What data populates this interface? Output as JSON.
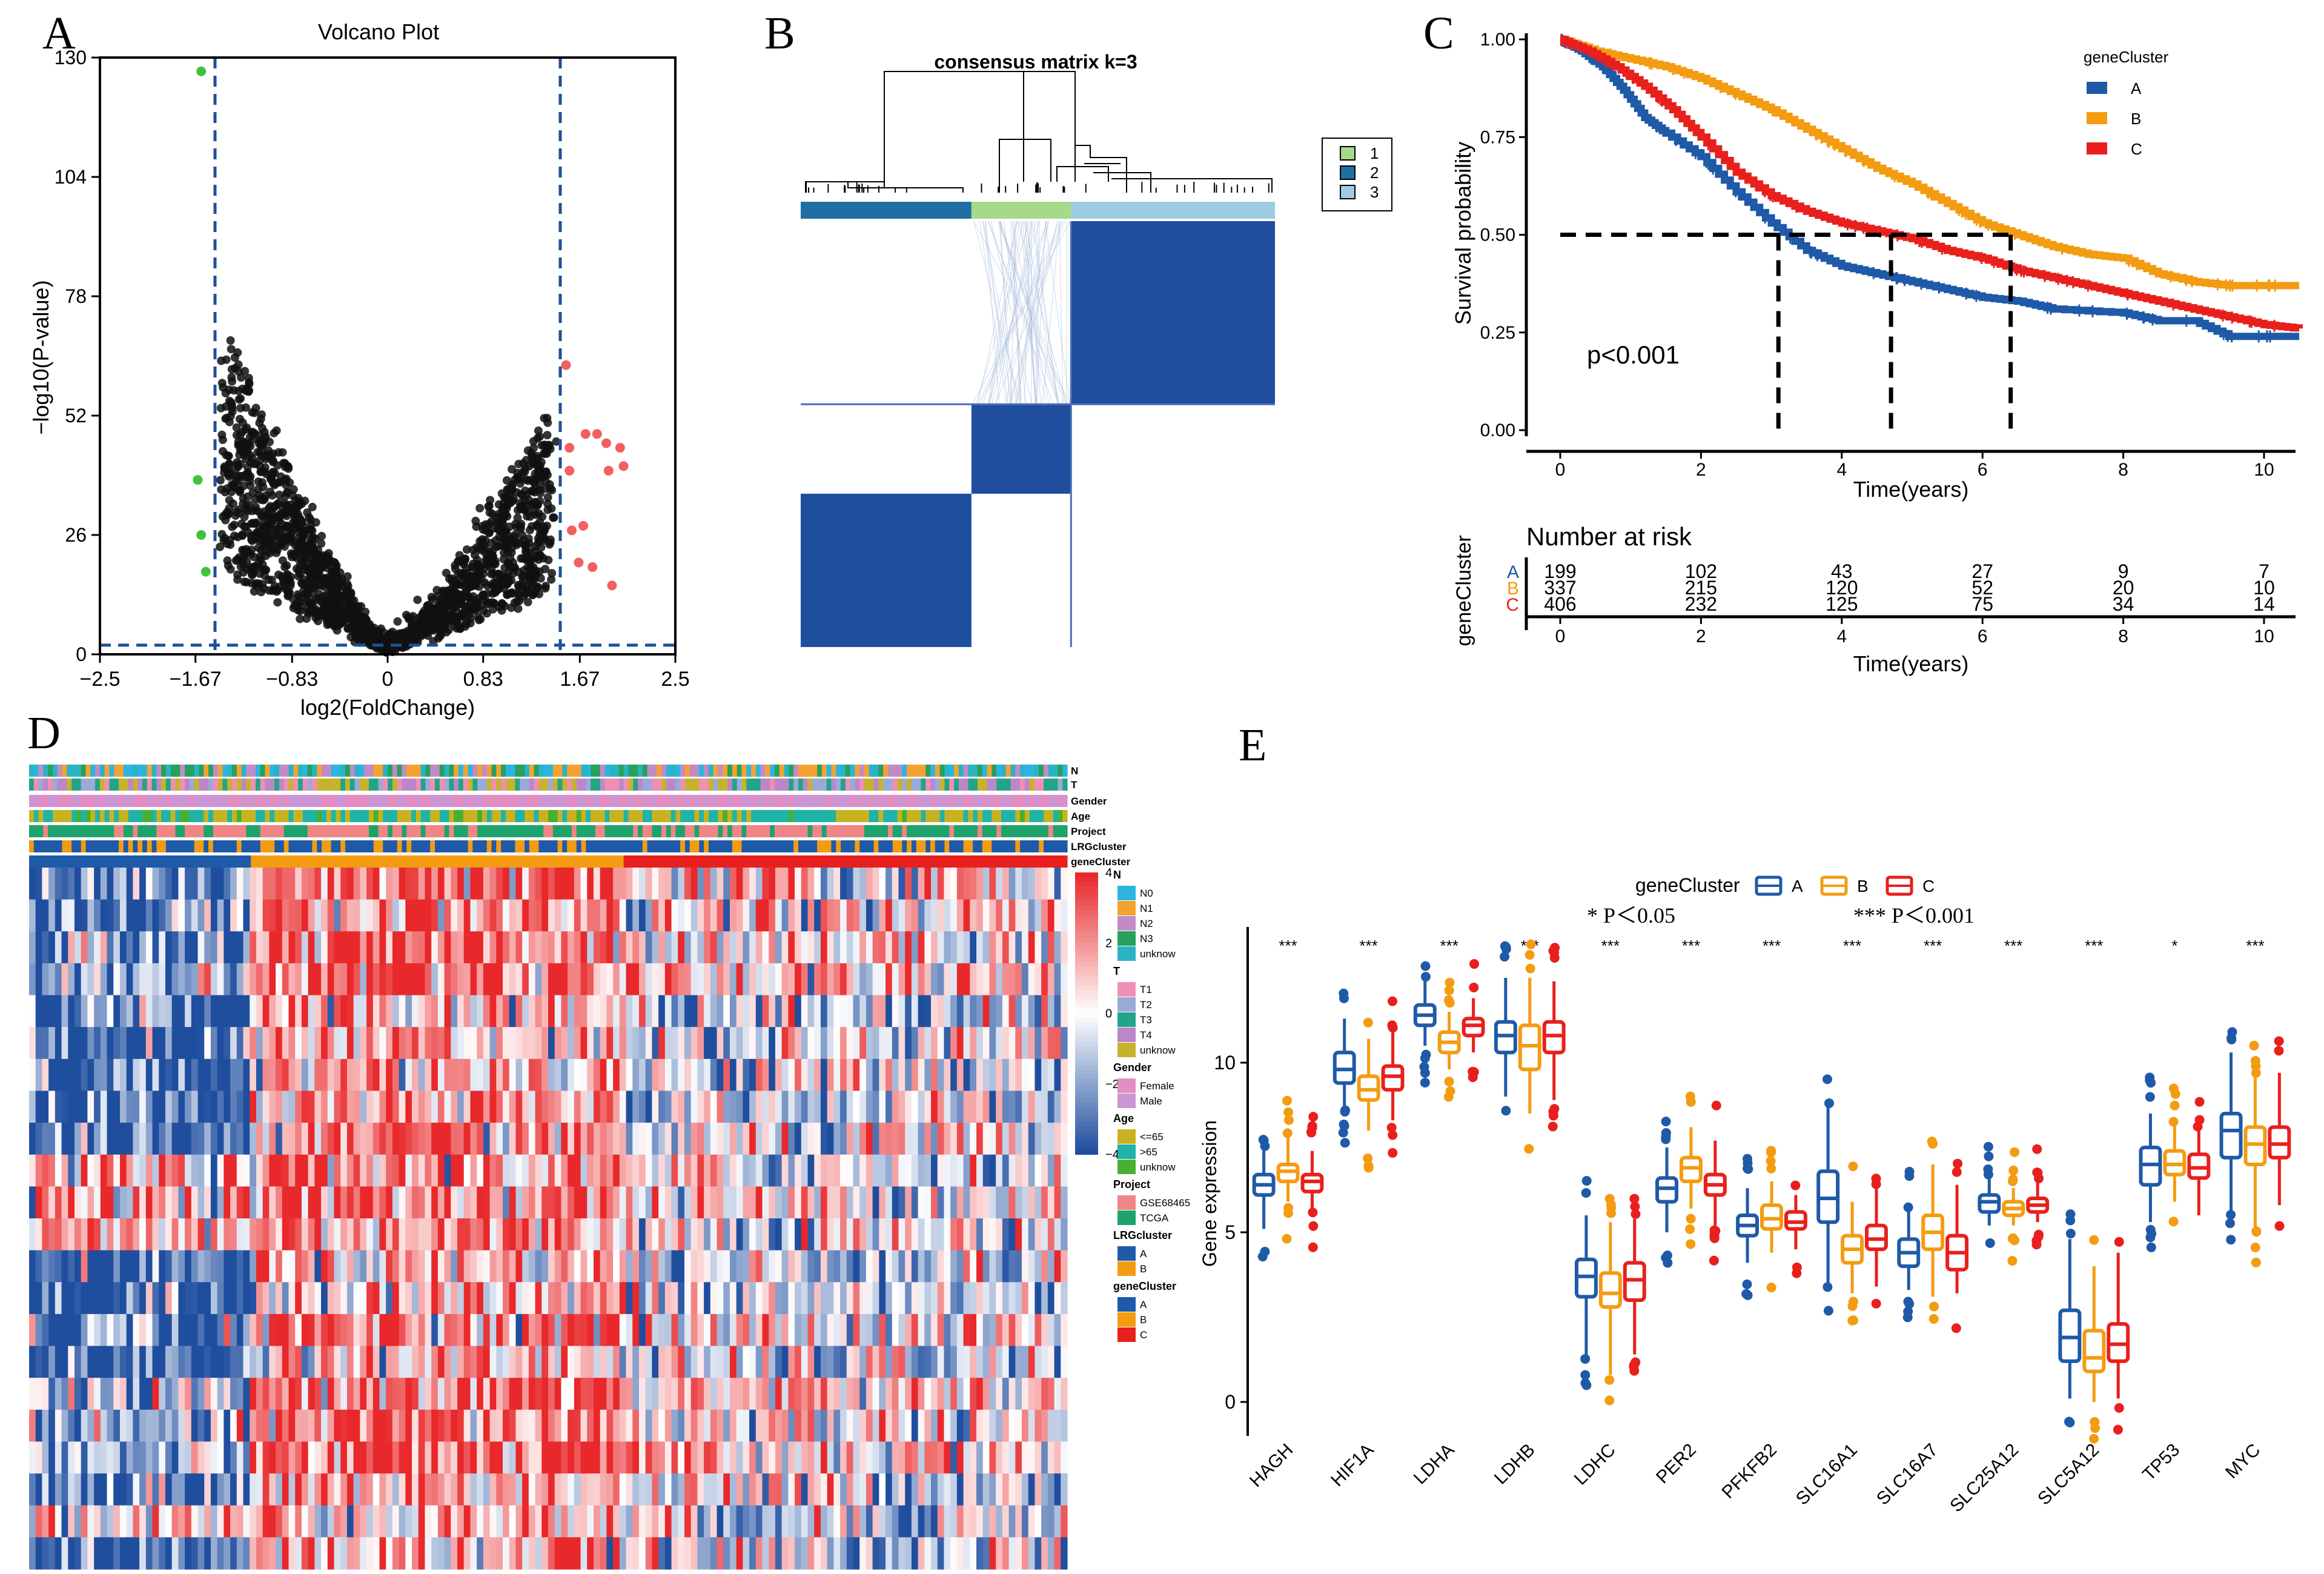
{
  "panels": {
    "A": "A",
    "B": "B",
    "C": "C",
    "D": "D",
    "E": "E"
  },
  "colors": {
    "blue": "#1f5aa8",
    "orange": "#f39c12",
    "red": "#e8201d",
    "heat_low": "#1f4e9f",
    "heat_high": "#e8262a"
  },
  "chart_data": [
    {
      "panel": "A",
      "type": "scatter",
      "title": "Volcano Plot",
      "xlabel": "log2(FoldChange)",
      "ylabel": "−log10(P-value)",
      "xticks": [
        "−2.5",
        "−1.67",
        "−0.83",
        "0",
        "0.83",
        "1.67",
        "2.5"
      ],
      "xtick_values": [
        -2.5,
        -1.67,
        -0.83,
        0,
        0.83,
        1.67,
        2.5
      ],
      "yticks": [
        "0",
        "26",
        "52",
        "78",
        "104",
        "130"
      ],
      "ytick_values": [
        0,
        26,
        52,
        78,
        104,
        130
      ],
      "xlim": [
        -2.5,
        2.5
      ],
      "ylim": [
        0,
        130
      ],
      "thresholds": {
        "logfc": [
          -1.5,
          1.5
        ],
        "pvalue": 2
      },
      "down_points": [
        [
          -1.62,
          127
        ],
        [
          -1.65,
          38
        ],
        [
          -1.62,
          26
        ],
        [
          -1.58,
          18
        ]
      ],
      "up_points": [
        [
          1.55,
          63
        ],
        [
          1.58,
          45
        ],
        [
          1.72,
          48
        ],
        [
          1.82,
          48
        ],
        [
          1.9,
          46
        ],
        [
          1.92,
          40
        ],
        [
          2.05,
          41
        ],
        [
          2.02,
          45
        ],
        [
          1.58,
          40
        ],
        [
          1.6,
          27
        ],
        [
          1.7,
          28
        ],
        [
          1.66,
          20
        ],
        [
          1.78,
          19
        ],
        [
          1.95,
          15
        ]
      ]
    },
    {
      "panel": "B",
      "type": "heatmap",
      "title": "consensus matrix k=3",
      "legend": [
        "1",
        "2",
        "3"
      ],
      "legend_colors": [
        "#a6d98a",
        "#1f6fa5",
        "#9fcbe2"
      ],
      "cluster_order": [
        "2",
        "1",
        "3"
      ],
      "cluster_fraction": [
        0.36,
        0.21,
        0.43
      ]
    },
    {
      "panel": "C",
      "type": "line",
      "xlabel": "Time(years)",
      "ylabel": "Survival probability",
      "xticks": [
        "0",
        "2",
        "4",
        "6",
        "8",
        "10"
      ],
      "xtick_values": [
        0,
        2,
        4,
        6,
        8,
        10
      ],
      "yticks": [
        "0.00",
        "0.25",
        "0.50",
        "0.75",
        "1.00"
      ],
      "ytick_values": [
        0,
        0.25,
        0.5,
        0.75,
        1.0
      ],
      "xlim": [
        0,
        10
      ],
      "ylim": [
        0,
        1
      ],
      "legend_title": "geneCluster",
      "pvalue": "p<0.001",
      "medians": [
        3.1,
        4.7,
        6.4
      ],
      "series": [
        {
          "name": "A",
          "color": "#1f5aa8",
          "points": [
            [
              0,
              1
            ],
            [
              0.3,
              0.97
            ],
            [
              0.6,
              0.93
            ],
            [
              0.9,
              0.87
            ],
            [
              1.2,
              0.8
            ],
            [
              1.5,
              0.76
            ],
            [
              2,
              0.7
            ],
            [
              2.5,
              0.61
            ],
            [
              3,
              0.53
            ],
            [
              3.5,
              0.46
            ],
            [
              4,
              0.42
            ],
            [
              4.5,
              0.4
            ],
            [
              5,
              0.38
            ],
            [
              5.5,
              0.36
            ],
            [
              6,
              0.34
            ],
            [
              6.5,
              0.33
            ],
            [
              7,
              0.31
            ],
            [
              8,
              0.3
            ],
            [
              8.5,
              0.28
            ],
            [
              9,
              0.28
            ],
            [
              9.5,
              0.24
            ],
            [
              10.5,
              0.24
            ]
          ]
        },
        {
          "name": "B",
          "color": "#f39c12",
          "points": [
            [
              0,
              1
            ],
            [
              0.5,
              0.97
            ],
            [
              1,
              0.95
            ],
            [
              1.5,
              0.93
            ],
            [
              2,
              0.9
            ],
            [
              2.5,
              0.86
            ],
            [
              3,
              0.82
            ],
            [
              3.5,
              0.77
            ],
            [
              4,
              0.72
            ],
            [
              4.5,
              0.67
            ],
            [
              5,
              0.63
            ],
            [
              5.5,
              0.58
            ],
            [
              6,
              0.53
            ],
            [
              6.5,
              0.5
            ],
            [
              7,
              0.47
            ],
            [
              7.5,
              0.45
            ],
            [
              8,
              0.44
            ],
            [
              8.5,
              0.4
            ],
            [
              9,
              0.38
            ],
            [
              9.5,
              0.37
            ],
            [
              10.5,
              0.37
            ]
          ]
        },
        {
          "name": "C",
          "color": "#e8201d",
          "points": [
            [
              0,
              1
            ],
            [
              0.4,
              0.97
            ],
            [
              0.8,
              0.93
            ],
            [
              1.2,
              0.88
            ],
            [
              1.6,
              0.82
            ],
            [
              2,
              0.75
            ],
            [
              2.5,
              0.66
            ],
            [
              3,
              0.6
            ],
            [
              3.5,
              0.56
            ],
            [
              4,
              0.53
            ],
            [
              4.5,
              0.51
            ],
            [
              5,
              0.49
            ],
            [
              5.5,
              0.46
            ],
            [
              6,
              0.44
            ],
            [
              6.5,
              0.41
            ],
            [
              7,
              0.39
            ],
            [
              7.5,
              0.37
            ],
            [
              8,
              0.35
            ],
            [
              8.5,
              0.33
            ],
            [
              9,
              0.31
            ],
            [
              9.5,
              0.29
            ],
            [
              10,
              0.27
            ],
            [
              10.5,
              0.26
            ]
          ]
        }
      ],
      "risk_table": {
        "title": "Number at risk",
        "ylabel": "geneCluster",
        "times": [
          "0",
          "2",
          "4",
          "6",
          "8",
          "10"
        ],
        "rows": [
          {
            "name": "A",
            "color": "#1f5aa8",
            "values": [
              "199",
              "102",
              "43",
              "27",
              "9",
              "7"
            ]
          },
          {
            "name": "B",
            "color": "#f39c12",
            "values": [
              "337",
              "215",
              "120",
              "52",
              "20",
              "10"
            ]
          },
          {
            "name": "C",
            "color": "#e8201d",
            "values": [
              "406",
              "232",
              "125",
              "75",
              "34",
              "14"
            ]
          }
        ]
      }
    },
    {
      "panel": "D",
      "type": "heatmap",
      "annotation_tracks": [
        "N",
        "T",
        "Gender",
        "Age",
        "Project",
        "LRGcluster",
        "geneCluster"
      ],
      "colorbar_ticks": [
        "4",
        "2",
        "0",
        "−2",
        "−4"
      ],
      "colorbar_values": [
        4,
        2,
        0,
        -2,
        -4
      ],
      "genecluster_fraction": [
        0.21,
        0.36,
        0.43
      ],
      "legends": [
        {
          "title": "N",
          "labels": [
            "N0",
            "N1",
            "N2",
            "N3",
            "unknow"
          ],
          "colors": [
            "#2bb5e0",
            "#f4a230",
            "#c38bc6",
            "#29a05b",
            "#2ab3c4"
          ]
        },
        {
          "title": "T",
          "labels": [
            "T1",
            "T2",
            "T3",
            "T4",
            "unknow"
          ],
          "colors": [
            "#f08fb4",
            "#9aaad8",
            "#22a488",
            "#bb87c9",
            "#c7b22e"
          ]
        },
        {
          "title": "Gender",
          "labels": [
            "Female",
            "Male"
          ],
          "colors": [
            "#e48dc3",
            "#cc95d3"
          ]
        },
        {
          "title": "Age",
          "labels": [
            "<=65",
            ">65",
            "unknow"
          ],
          "colors": [
            "#c8b220",
            "#20b3a8",
            "#47b033"
          ]
        },
        {
          "title": "Project",
          "labels": [
            "GSE68465",
            "TCGA"
          ],
          "colors": [
            "#f08585",
            "#1da36b"
          ]
        },
        {
          "title": "LRGcluster",
          "labels": [
            "A",
            "B"
          ],
          "colors": [
            "#1f5aa8",
            "#f39c12"
          ]
        },
        {
          "title": "geneCluster",
          "labels": [
            "A",
            "B",
            "C"
          ],
          "colors": [
            "#1f5aa8",
            "#f39c12",
            "#e8201d"
          ]
        }
      ]
    },
    {
      "panel": "E",
      "type": "box",
      "ylabel": "Gene expression",
      "legend_title": "geneCluster",
      "legend": [
        "A",
        "B",
        "C"
      ],
      "series_colors": [
        "#1f5aa8",
        "#f39c12",
        "#e8201d"
      ],
      "significance_notes": [
        "* P＜0.05",
        "*** P＜0.001"
      ],
      "yticks": [
        "0",
        "5",
        "10"
      ],
      "ytick_values": [
        0,
        5,
        10
      ],
      "ylim": [
        -1,
        14
      ],
      "categories": [
        "HAGH",
        "HIF1A",
        "LDHA",
        "LDHB",
        "LDHC",
        "PER2",
        "PFKFB2",
        "SLC16A1",
        "SLC16A7",
        "SLC25A12",
        "SLC5A12",
        "TP53",
        "MYC"
      ],
      "significance": [
        "***",
        "***",
        "***",
        "***",
        "***",
        "***",
        "***",
        "***",
        "***",
        "***",
        "***",
        "*",
        "***"
      ],
      "series": [
        {
          "name": "A",
          "boxes": [
            [
              5.1,
              6.1,
              6.4,
              6.7,
              7.5
            ],
            [
              8.6,
              9.4,
              9.8,
              10.3,
              11.3
            ],
            [
              10.5,
              11.1,
              11.4,
              11.7,
              12.5
            ],
            [
              9.0,
              10.3,
              10.8,
              11.2,
              12.5
            ],
            [
              1.3,
              3.1,
              3.7,
              4.2,
              5.5
            ],
            [
              5.0,
              5.9,
              6.3,
              6.6,
              7.5
            ],
            [
              4.1,
              4.9,
              5.2,
              5.5,
              6.3
            ],
            [
              3.5,
              5.3,
              6.0,
              6.8,
              8.7
            ],
            [
              3.3,
              4.0,
              4.4,
              4.8,
              5.7
            ],
            [
              5.2,
              5.6,
              5.9,
              6.1,
              6.6
            ],
            [
              0.1,
              1.2,
              1.9,
              2.7,
              4.8
            ],
            [
              5.3,
              6.4,
              7.0,
              7.5,
              8.5
            ],
            [
              5.6,
              7.2,
              8.0,
              8.5,
              10.3
            ]
          ]
        },
        {
          "name": "B",
          "boxes": [
            [
              5.9,
              6.5,
              6.8,
              7.0,
              7.8
            ],
            [
              8.0,
              8.9,
              9.2,
              9.6,
              10.7
            ],
            [
              9.8,
              10.3,
              10.6,
              10.9,
              11.5
            ],
            [
              8.5,
              9.8,
              10.5,
              11.1,
              12.5
            ],
            [
              0.8,
              2.8,
              3.2,
              3.8,
              5.3
            ],
            [
              5.7,
              6.5,
              6.9,
              7.2,
              8.1
            ],
            [
              4.4,
              5.1,
              5.4,
              5.8,
              6.5
            ],
            [
              3.2,
              4.1,
              4.5,
              4.9,
              5.9
            ],
            [
              3.1,
              4.5,
              5.0,
              5.5,
              7.0
            ],
            [
              5.2,
              5.5,
              5.7,
              5.9,
              6.3
            ],
            [
              0.0,
              0.9,
              1.3,
              2.1,
              4.0
            ],
            [
              5.9,
              6.7,
              7.0,
              7.4,
              8.2
            ],
            [
              5.1,
              7.0,
              7.6,
              8.1,
              9.6
            ]
          ]
        },
        {
          "name": "C",
          "boxes": [
            [
              5.6,
              6.2,
              6.5,
              6.7,
              7.4
            ],
            [
              8.3,
              9.2,
              9.6,
              9.9,
              10.9
            ],
            [
              10.3,
              10.8,
              11.1,
              11.3,
              11.9
            ],
            [
              8.9,
              10.3,
              10.8,
              11.2,
              12.4
            ],
            [
              1.4,
              3.0,
              3.6,
              4.1,
              5.4
            ],
            [
              5.2,
              6.1,
              6.4,
              6.7,
              7.7
            ],
            [
              4.5,
              5.1,
              5.3,
              5.6,
              6.1
            ],
            [
              3.4,
              4.5,
              4.8,
              5.2,
              6.3
            ],
            [
              3.2,
              3.9,
              4.4,
              4.9,
              6.4
            ],
            [
              5.3,
              5.6,
              5.8,
              6.0,
              6.5
            ],
            [
              0.1,
              1.2,
              1.7,
              2.3,
              4.4
            ],
            [
              5.5,
              6.6,
              6.9,
              7.3,
              8.1
            ],
            [
              5.8,
              7.2,
              7.6,
              8.1,
              9.7
            ]
          ]
        }
      ]
    }
  ]
}
